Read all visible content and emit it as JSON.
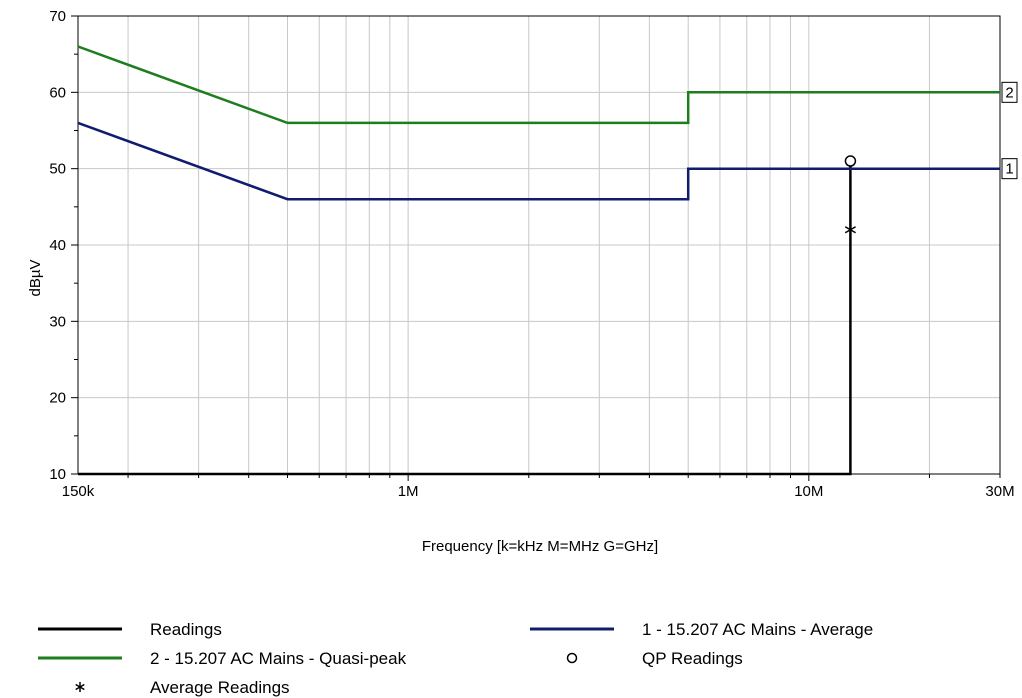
{
  "chart_data": {
    "type": "line",
    "title": "",
    "xlabel": "Frequency [k=kHz M=MHz G=GHz]",
    "ylabel": "dBµV",
    "x_scale": "log",
    "xlim": [
      150000,
      30000000
    ],
    "ylim": [
      10,
      70
    ],
    "grid": true,
    "x_ticks": [
      {
        "value": 150000,
        "label": "150k"
      },
      {
        "value": 1000000,
        "label": "1M"
      },
      {
        "value": 10000000,
        "label": "10M"
      },
      {
        "value": 30000000,
        "label": "30M"
      }
    ],
    "y_ticks": [
      10,
      20,
      30,
      40,
      50,
      60,
      70
    ],
    "series": [
      {
        "name": "Readings",
        "color": "#000000",
        "style": "line",
        "points": [
          [
            150000,
            10
          ],
          [
            12700000,
            10
          ],
          [
            12700000,
            51
          ]
        ]
      },
      {
        "name": "2 - 15.207 AC Mains - Quasi-peak",
        "color": "#1e7d1e",
        "style": "line",
        "end_tag": "2",
        "points": [
          [
            150000,
            66
          ],
          [
            500000,
            56
          ],
          [
            5000000,
            56
          ],
          [
            5000000,
            60
          ],
          [
            30000000,
            60
          ]
        ]
      },
      {
        "name": "1 - 15.207 AC Mains - Average",
        "color": "#101c6e",
        "style": "line",
        "end_tag": "1",
        "points": [
          [
            150000,
            56
          ],
          [
            500000,
            46
          ],
          [
            5000000,
            46
          ],
          [
            5000000,
            50
          ],
          [
            30000000,
            50
          ]
        ]
      },
      {
        "name": "QP Readings",
        "color": "#000000",
        "style": "marker-circle",
        "points": [
          [
            12700000,
            51
          ]
        ]
      },
      {
        "name": "Average Readings",
        "color": "#000000",
        "style": "marker-star",
        "points": [
          [
            12700000,
            42
          ]
        ]
      }
    ],
    "legend": {
      "placement": "bottom",
      "entries": [
        {
          "label": "Readings",
          "symbol": "line",
          "color": "#000000"
        },
        {
          "label": "1 - 15.207 AC Mains - Average",
          "symbol": "line",
          "color": "#101c6e"
        },
        {
          "label": "2 - 15.207 AC Mains - Quasi-peak",
          "symbol": "line",
          "color": "#1e7d1e"
        },
        {
          "label": "QP Readings",
          "symbol": "circle",
          "color": "#000000"
        },
        {
          "label": "Average Readings",
          "symbol": "star",
          "color": "#000000"
        }
      ]
    }
  }
}
